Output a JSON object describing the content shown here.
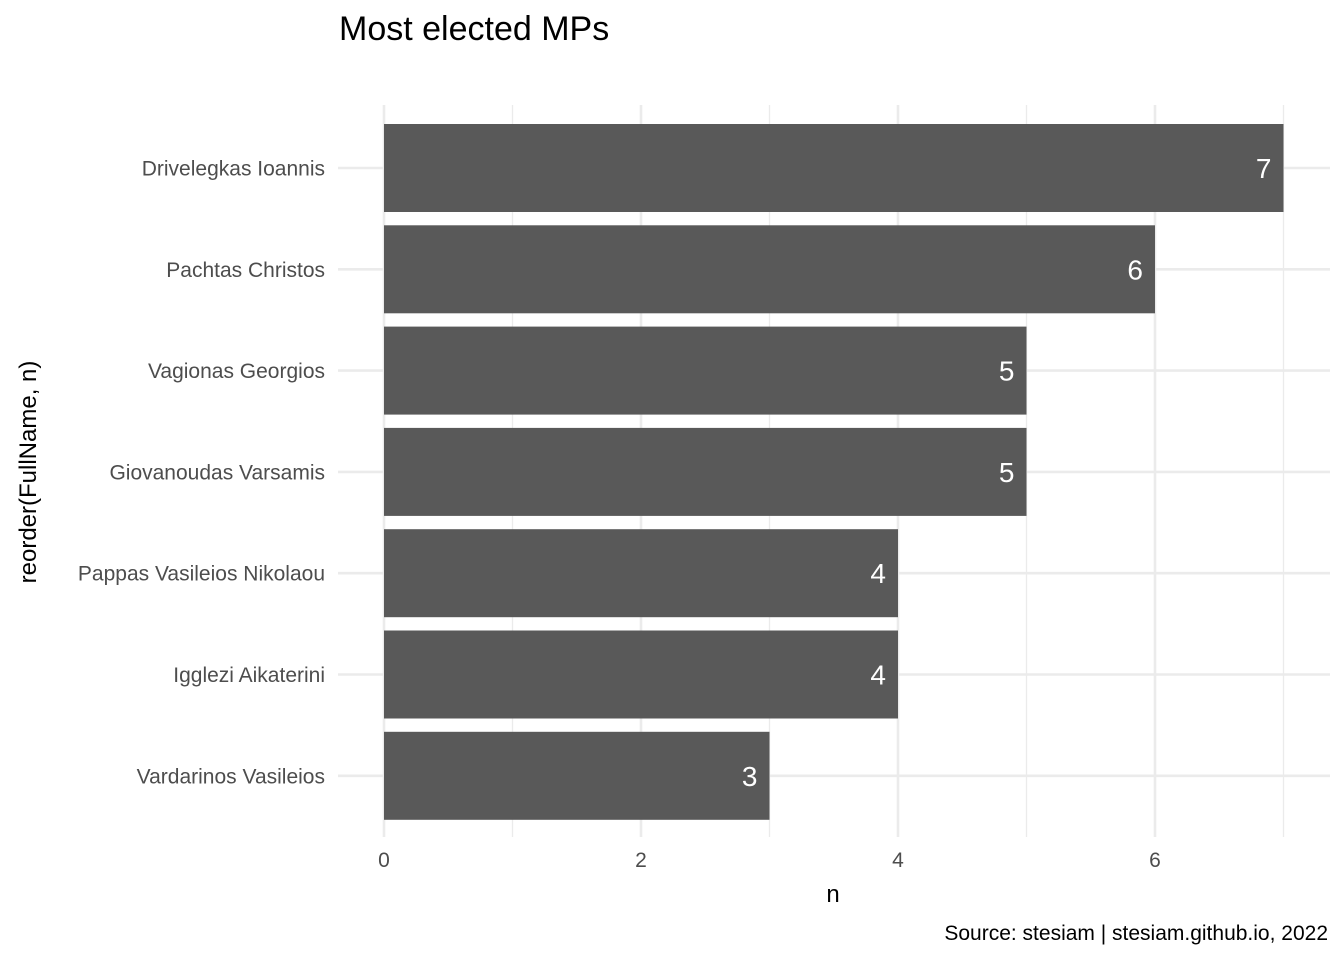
{
  "chart_data": {
    "type": "bar",
    "orientation": "horizontal",
    "title": "Most elected MPs",
    "xlabel": "n",
    "ylabel": "reorder(FullName, n)",
    "caption": "Source: stesiam | stesiam.github.io, 2022",
    "categories": [
      "Drivelegkas Ioannis",
      "Pachtas Christos",
      "Vagionas Georgios",
      "Giovanoudas Varsamis",
      "Pappas Vasileios Nikolaou",
      "Igglezi Aikaterini",
      "Vardarinos Vasileios"
    ],
    "values": [
      7,
      6,
      5,
      5,
      4,
      4,
      3
    ],
    "data_labels": [
      "7",
      "6",
      "5",
      "5",
      "4",
      "4",
      "3"
    ],
    "x_ticks": [
      "0",
      "2",
      "4",
      "6"
    ],
    "xlim": [
      0,
      7.35
    ],
    "grid": true,
    "bar_color": "#595959",
    "label_color": "#ffffff"
  }
}
